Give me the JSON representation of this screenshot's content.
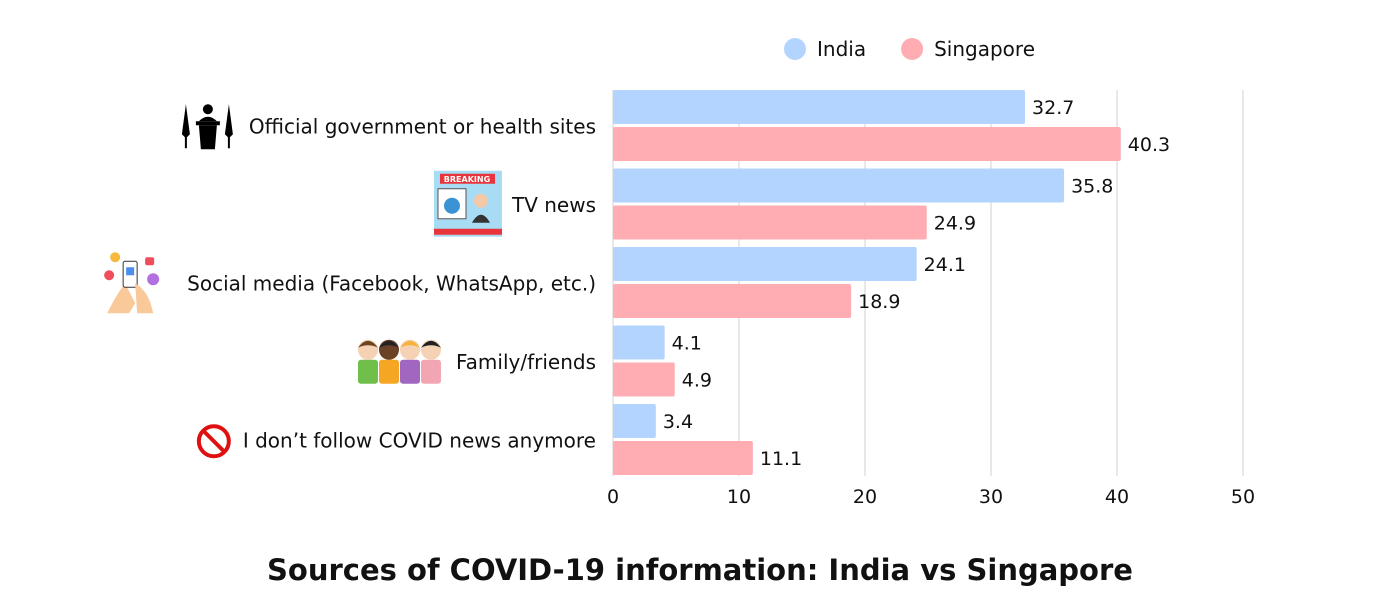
{
  "chart_data": {
    "type": "bar",
    "orientation": "horizontal",
    "title": "Sources of COVID-19 information: India vs Singapore",
    "categories": [
      "Official government or health sites",
      "TV news",
      "Social media (Facebook, WhatsApp, etc.)",
      "Family/friends",
      "I don’t follow COVID news anymore"
    ],
    "category_icons": [
      "podium-speaker-icon",
      "breaking-news-tv-icon",
      "social-media-phone-icon",
      "friends-group-icon",
      "prohibited-icon"
    ],
    "series": [
      {
        "name": "India",
        "color": "#b3d4ff",
        "values": [
          32.7,
          35.8,
          24.1,
          4.1,
          3.4
        ]
      },
      {
        "name": "Singapore",
        "color": "#ffadb3",
        "values": [
          40.3,
          24.9,
          18.9,
          4.9,
          11.1
        ]
      }
    ],
    "xlim": [
      0,
      50
    ],
    "xticks": [
      0,
      10,
      20,
      30,
      40,
      50
    ],
    "grid": "vertical",
    "legend": "top",
    "data_labels": true
  }
}
